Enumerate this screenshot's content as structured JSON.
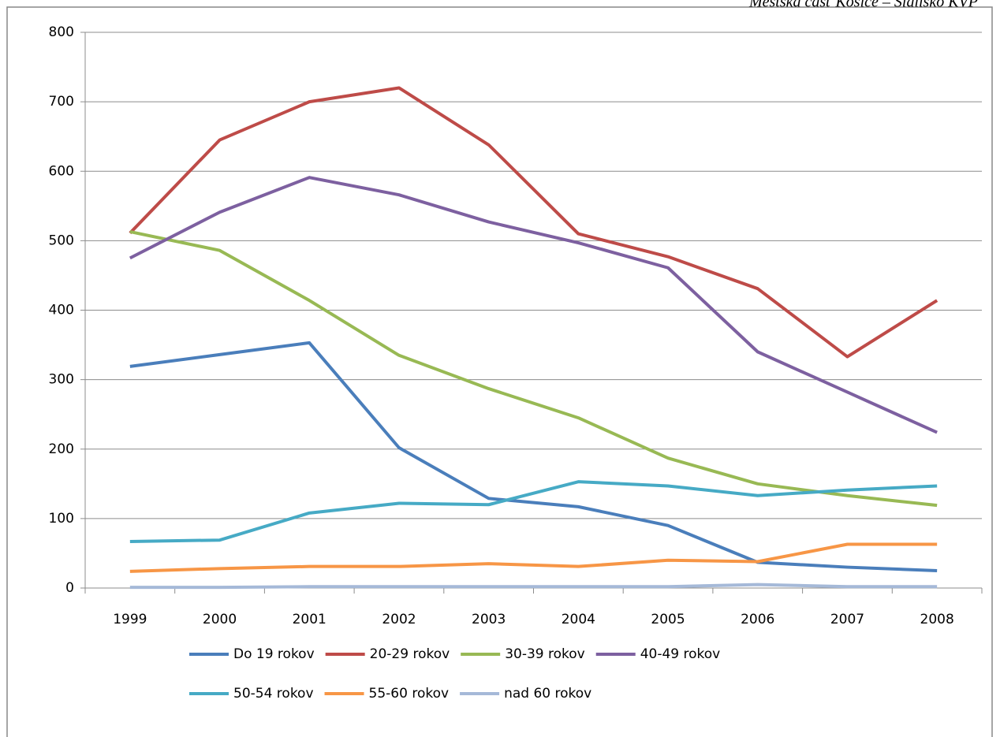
{
  "chart_data": {
    "type": "line",
    "annotation": "Mestská časť Košice – Sídlisko KVP",
    "categories": [
      "1999",
      "2000",
      "2001",
      "2002",
      "2003",
      "2004",
      "2005",
      "2006",
      "2007",
      "2008"
    ],
    "series": [
      {
        "name": "Do 19 rokov",
        "color": "#4a7ebb",
        "values": [
          319,
          336,
          353,
          202,
          129,
          117,
          90,
          37,
          30,
          25
        ]
      },
      {
        "name": "20-29 rokov",
        "color": "#be4b48",
        "values": [
          511,
          645,
          700,
          720,
          638,
          510,
          477,
          431,
          333,
          414
        ]
      },
      {
        "name": "30-39 rokov",
        "color": "#98b954",
        "values": [
          513,
          486,
          414,
          335,
          287,
          245,
          187,
          150,
          133,
          119
        ]
      },
      {
        "name": "40-49 rokov",
        "color": "#7d60a0",
        "values": [
          475,
          541,
          591,
          566,
          527,
          497,
          461,
          340,
          282,
          224
        ]
      },
      {
        "name": "50-54 rokov",
        "color": "#46aac5",
        "values": [
          67,
          69,
          108,
          122,
          120,
          153,
          147,
          133,
          141,
          147
        ]
      },
      {
        "name": "55-60 rokov",
        "color": "#f79646",
        "values": [
          24,
          28,
          31,
          31,
          35,
          31,
          40,
          38,
          63,
          63
        ]
      },
      {
        "name": "nad 60 rokov",
        "color": "#a5b9d8",
        "values": [
          1,
          1,
          2,
          2,
          2,
          2,
          2,
          5,
          2,
          2
        ]
      }
    ],
    "ylim": [
      0,
      800
    ],
    "yticks": [
      0,
      100,
      200,
      300,
      400,
      500,
      600,
      700,
      800
    ],
    "grid": true,
    "legend": "bottom"
  }
}
